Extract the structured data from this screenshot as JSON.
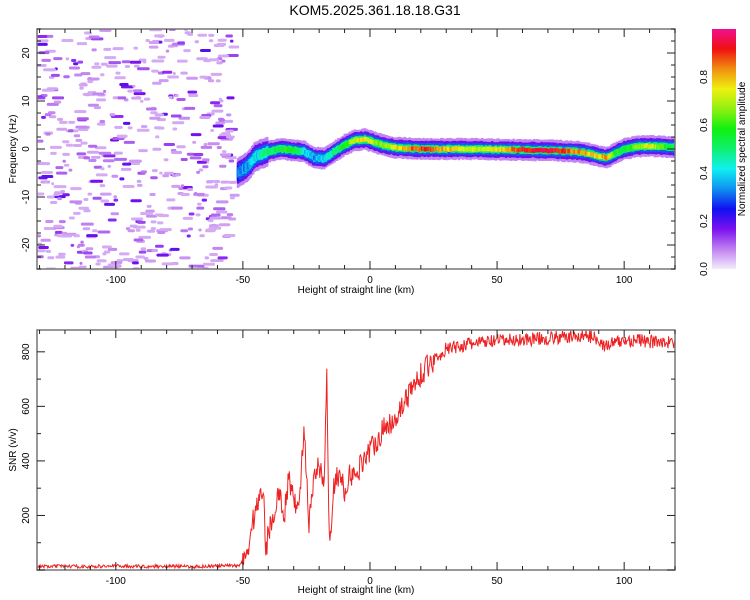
{
  "title": "KOM5.2025.361.18.18.G31",
  "chart_data": [
    {
      "type": "heatmap",
      "name": "spectrogram",
      "xlabel": "Height of straight line (km)",
      "ylabel": "Frequency (Hz)",
      "xlim": [
        -131,
        120
      ],
      "ylim": [
        -25,
        25
      ],
      "xticks": [
        -100,
        -50,
        0,
        50,
        100
      ],
      "xtick_labels": [
        "-100",
        "-50",
        "0",
        "50",
        "100"
      ],
      "yticks": [
        -20,
        -10,
        0,
        10,
        20
      ],
      "ytick_labels": [
        "-20",
        "-10",
        "0",
        "10",
        "20"
      ],
      "colorbar": {
        "label": "Normalized spectral amplitude",
        "range": [
          0,
          1
        ],
        "ticks": [
          0.0,
          0.2,
          0.4,
          0.6,
          0.8
        ],
        "tick_labels": [
          "0.0",
          "0.2",
          "0.4",
          "0.6",
          "0.8"
        ],
        "colors": [
          "#f4ecfb",
          "#c080f0",
          "#7a10f0",
          "#1010f0",
          "#1090f0",
          "#10f0f0",
          "#10f070",
          "#10f010",
          "#90f010",
          "#f0f010",
          "#f09010",
          "#f01010",
          "#f01090"
        ]
      },
      "ridge": {
        "description": "Dominant frequency track versus height",
        "x": [
          -52,
          -48,
          -45,
          -40,
          -35,
          -30,
          -26,
          -22,
          -18,
          -14,
          -10,
          -6,
          -2,
          0,
          5,
          10,
          20,
          30,
          40,
          50,
          60,
          70,
          80,
          85,
          90,
          93,
          96,
          100,
          105,
          110,
          115,
          120
        ],
        "y": [
          -5,
          -3.5,
          -1.5,
          -0.5,
          0,
          -0.3,
          -0.5,
          -1.8,
          -2,
          -0.5,
          0.8,
          1.8,
          2,
          1.7,
          0.8,
          0.3,
          0,
          0,
          0,
          -0.1,
          -0.2,
          -0.3,
          -0.5,
          -0.8,
          -1.5,
          -1.8,
          -1,
          0,
          0.5,
          0.6,
          0.5,
          0.3
        ],
        "amplitude": [
          0.3,
          0.35,
          0.4,
          0.5,
          0.55,
          0.6,
          0.4,
          0.35,
          0.4,
          0.5,
          0.6,
          0.7,
          0.8,
          0.7,
          0.65,
          0.75,
          0.9,
          0.8,
          0.7,
          0.75,
          0.9,
          0.95,
          0.85,
          0.8,
          0.75,
          0.85,
          0.6,
          0.55,
          0.65,
          0.75,
          0.6,
          0.55
        ]
      },
      "noise_region": {
        "x_range": [
          -131,
          -53
        ],
        "amplitude": [
          0.05,
          0.2
        ]
      }
    },
    {
      "type": "line",
      "name": "snr",
      "xlabel": "Height of straight line (km)",
      "ylabel": "SNR (v/v)",
      "xlim": [
        -131,
        120
      ],
      "ylim": [
        0,
        880
      ],
      "xticks": [
        -100,
        -50,
        0,
        50,
        100
      ],
      "xtick_labels": [
        "-100",
        "-50",
        "0",
        "50",
        "100"
      ],
      "yticks": [
        200,
        400,
        600,
        800
      ],
      "ytick_labels": [
        "200",
        "400",
        "600",
        "800"
      ],
      "series": [
        {
          "name": "SNR",
          "color": "#ee2222",
          "x": [
            -131,
            -120,
            -110,
            -100,
            -90,
            -80,
            -70,
            -60,
            -52,
            -50,
            -48,
            -46,
            -44,
            -42,
            -41,
            -40,
            -38,
            -36,
            -34,
            -32,
            -30,
            -28,
            -26,
            -24,
            -22,
            -20,
            -18,
            -17,
            -16,
            -14,
            -12,
            -10,
            -8,
            -6,
            -4,
            -2,
            0,
            5,
            10,
            15,
            20,
            25,
            30,
            35,
            40,
            50,
            60,
            70,
            80,
            85,
            90,
            92,
            95,
            100,
            105,
            110,
            115,
            120
          ],
          "y": [
            12,
            14,
            12,
            15,
            13,
            14,
            12,
            15,
            16,
            30,
            80,
            180,
            250,
            310,
            60,
            140,
            200,
            300,
            180,
            330,
            280,
            200,
            540,
            150,
            340,
            380,
            300,
            710,
            100,
            320,
            360,
            280,
            360,
            330,
            380,
            420,
            440,
            510,
            560,
            640,
            720,
            770,
            810,
            820,
            830,
            840,
            845,
            850,
            855,
            860,
            850,
            820,
            830,
            840,
            845,
            835,
            840,
            830
          ]
        }
      ]
    }
  ]
}
